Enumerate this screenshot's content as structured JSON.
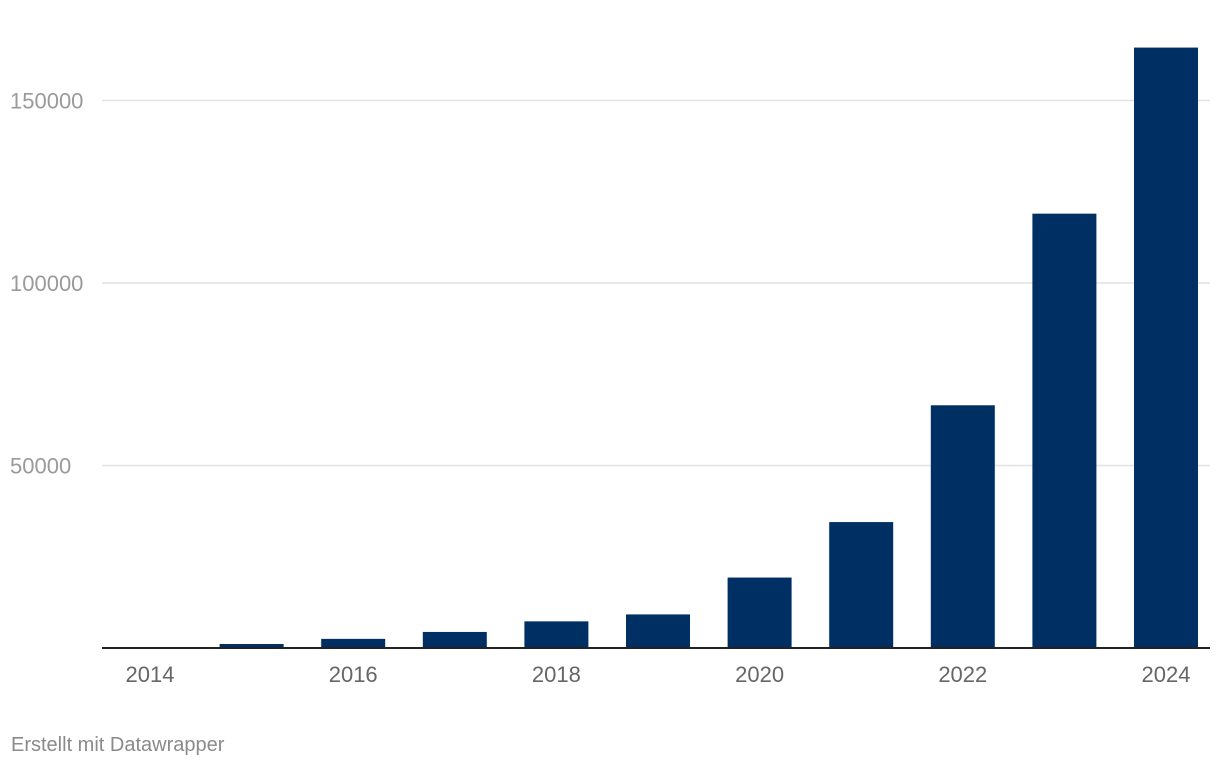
{
  "chart_data": {
    "type": "bar",
    "title": "",
    "xlabel": "",
    "ylabel": "",
    "categories": [
      "2014",
      "2015",
      "2016",
      "2017",
      "2018",
      "2019",
      "2020",
      "2021",
      "2022",
      "2023",
      "2024"
    ],
    "values": [
      0,
      1100,
      2500,
      4400,
      7300,
      9200,
      19300,
      34500,
      66500,
      119000,
      164500
    ],
    "ylim": [
      0,
      165000
    ],
    "y_ticks": [
      50000,
      100000,
      150000
    ],
    "y_tick_labels": [
      "50000",
      "100000",
      "150000"
    ],
    "x_tick_labels": [
      "2014",
      "2016",
      "2018",
      "2020",
      "2022",
      "2024"
    ],
    "grid": true,
    "bar_color": "#002f63"
  },
  "footer": {
    "credit": "Erstellt mit Datawrapper"
  }
}
